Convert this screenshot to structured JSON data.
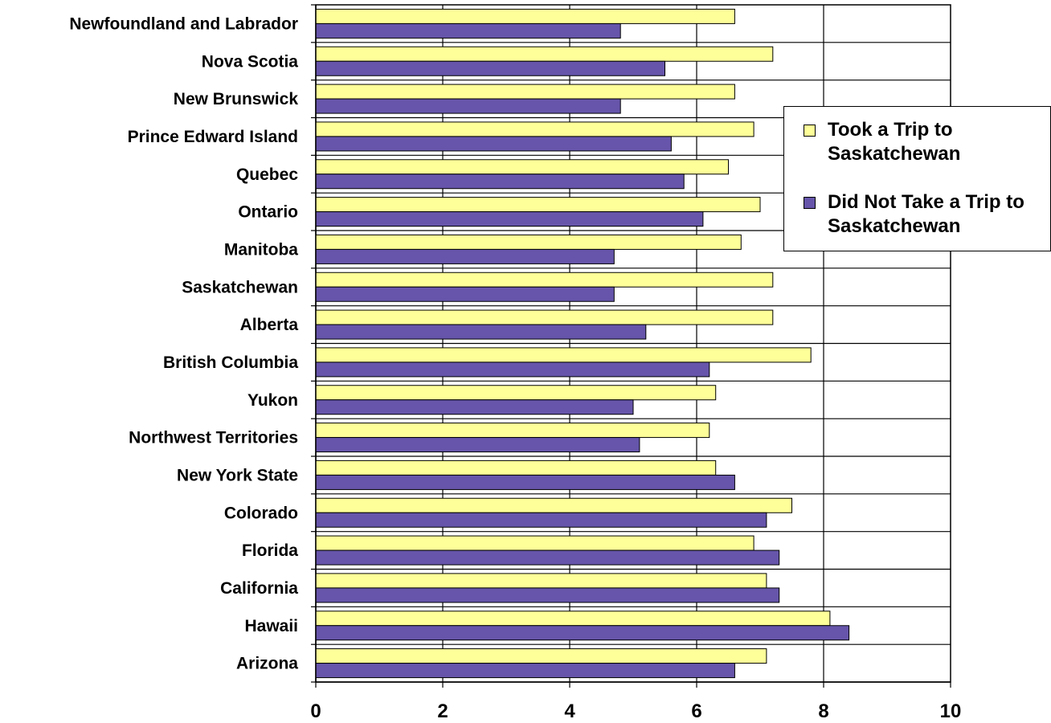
{
  "colors": {
    "took": "#ffff99",
    "not_took": "#6655aa",
    "grid": "#000000",
    "background": "#ffffff"
  },
  "chart_data": {
    "type": "bar",
    "orientation": "horizontal",
    "title": "",
    "xlabel": "",
    "ylabel": "",
    "xlim": [
      0,
      10
    ],
    "x_ticks": [
      "0",
      "2",
      "4",
      "6",
      "8",
      "10"
    ],
    "grid": "vertical gridlines at major ticks",
    "legend_placement": "right",
    "categories": [
      "Newfoundland and Labrador",
      "Nova Scotia",
      "New Brunswick",
      "Prince Edward Island",
      "Quebec",
      "Ontario",
      "Manitoba",
      "Saskatchewan",
      "Alberta",
      "British Columbia",
      "Yukon",
      "Northwest Territories",
      "New York State",
      "Colorado",
      "Florida",
      "California",
      "Hawaii",
      "Arizona"
    ],
    "series": [
      {
        "name": "Took a Trip to Saskatchewan",
        "color": "#ffff99",
        "values": [
          6.6,
          7.2,
          6.6,
          6.9,
          6.5,
          7.0,
          6.7,
          7.2,
          7.2,
          7.8,
          6.3,
          6.2,
          6.3,
          7.5,
          6.9,
          7.1,
          8.1,
          7.1
        ]
      },
      {
        "name": "Did Not Take a Trip to Saskatchewan",
        "color": "#6655aa",
        "values": [
          4.8,
          5.5,
          4.8,
          5.6,
          5.8,
          6.1,
          4.7,
          4.7,
          5.2,
          6.2,
          5.0,
          5.1,
          6.6,
          7.1,
          7.3,
          7.3,
          8.4,
          6.6
        ]
      }
    ]
  },
  "legend": {
    "items": [
      {
        "label": "Took a Trip to Saskatchewan",
        "color": "#ffff99"
      },
      {
        "label": "Did Not Take a Trip to Saskatchewan",
        "color": "#6655aa"
      }
    ]
  }
}
